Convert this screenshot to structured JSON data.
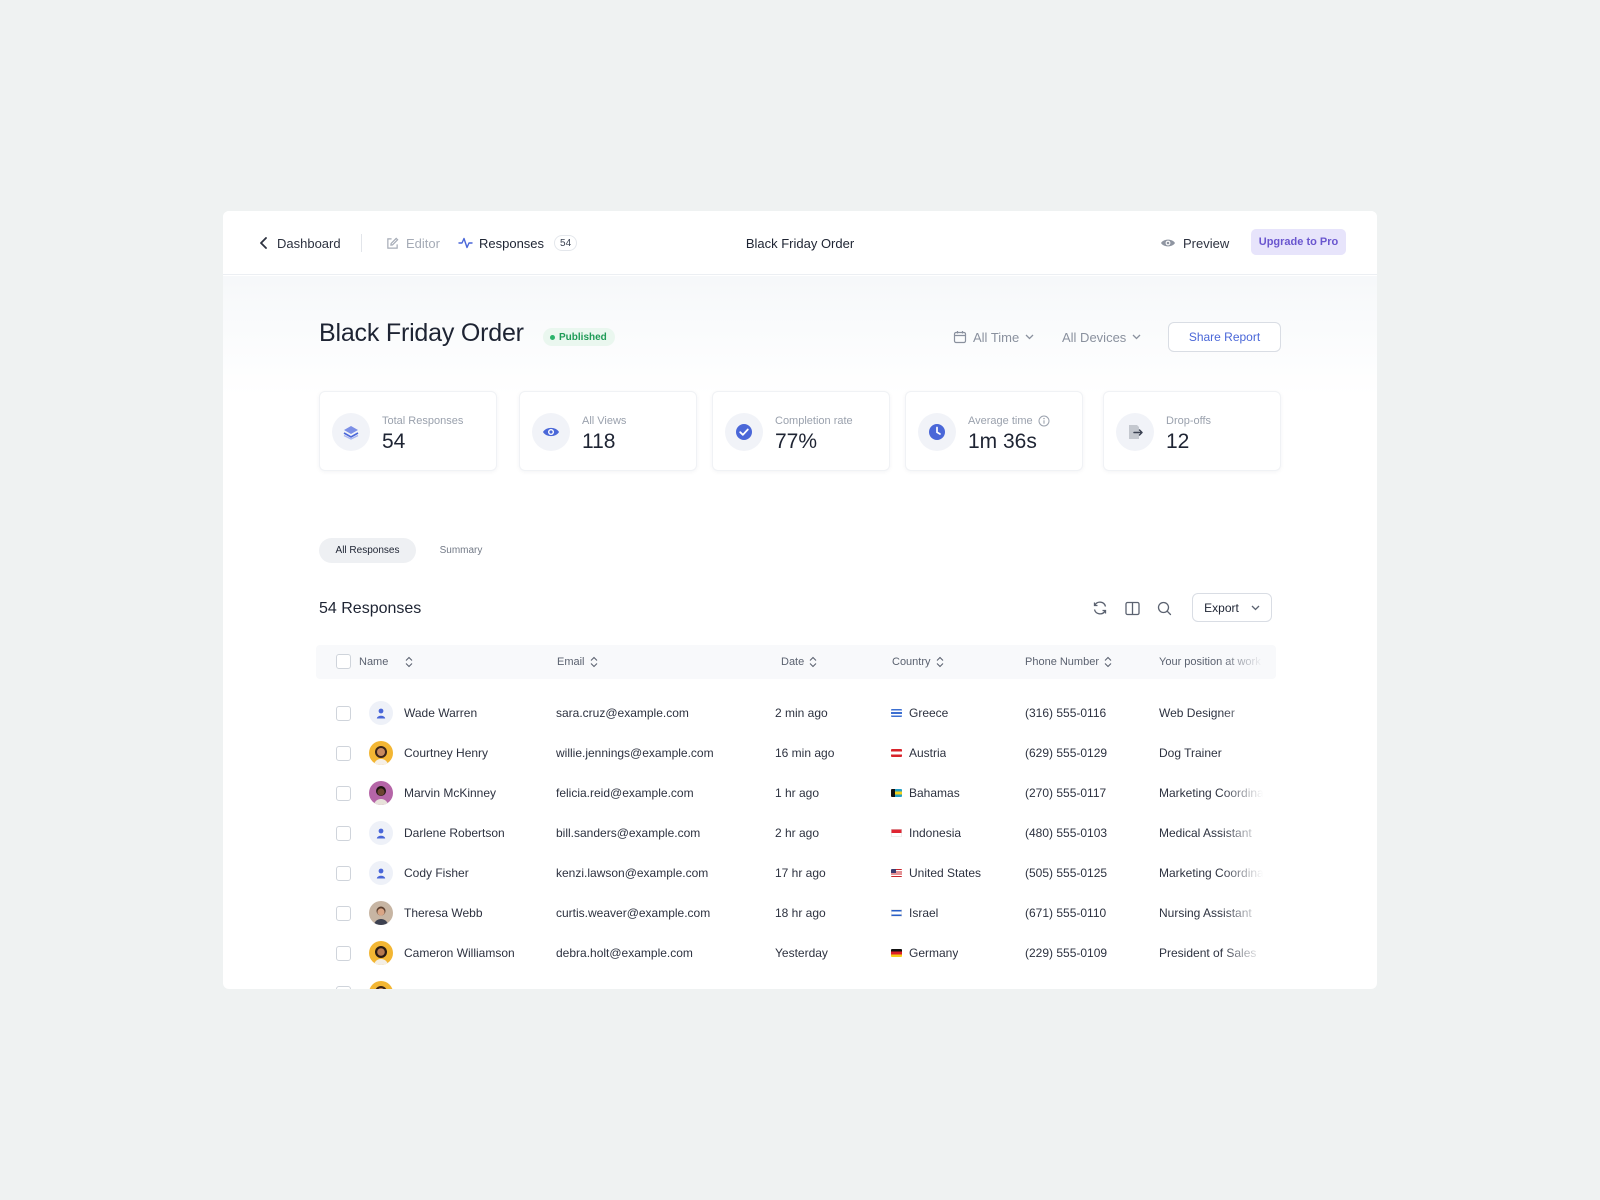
{
  "nav": {
    "back_label": "Dashboard",
    "editor_label": "Editor",
    "responses_label": "Responses",
    "responses_count": "54",
    "form_title": "Black Friday Order",
    "preview_label": "Preview",
    "upgrade_label": "Upgrade to Pro"
  },
  "header": {
    "title": "Black Friday Order",
    "status": "Published",
    "time_filter": "All Time",
    "device_filter": "All Devices",
    "share_label": "Share Report"
  },
  "stats": [
    {
      "label": "Total Responses",
      "value": "54",
      "icon": "layers-icon"
    },
    {
      "label": "All Views",
      "value": "118",
      "icon": "eye-icon"
    },
    {
      "label": "Completion rate",
      "value": "77%",
      "icon": "check-circle-icon"
    },
    {
      "label": "Average time",
      "value": "1m 36s",
      "icon": "clock-icon"
    },
    {
      "label": "Drop-offs",
      "value": "12",
      "icon": "exit-icon"
    }
  ],
  "tabs": {
    "all": "All Responses",
    "summary": "Summary"
  },
  "table": {
    "count_label": "54 Responses",
    "export_label": "Export",
    "columns": [
      "Name",
      "Email",
      "Date",
      "Country",
      "Phone Number",
      "Your position at work"
    ],
    "rows": [
      {
        "name": "Wade Warren",
        "email": "sara.cruz@example.com",
        "date": "2 min ago",
        "country": "Greece",
        "phone": "(316) 555-0116",
        "position": "Web Designer"
      },
      {
        "name": "Courtney Henry",
        "email": "willie.jennings@example.com",
        "date": "16 min ago",
        "country": "Austria",
        "phone": "(629) 555-0129",
        "position": "Dog Trainer"
      },
      {
        "name": "Marvin McKinney",
        "email": "felicia.reid@example.com",
        "date": "1 hr ago",
        "country": "Bahamas",
        "phone": "(270) 555-0117",
        "position": "Marketing Coordinator"
      },
      {
        "name": "Darlene Robertson",
        "email": "bill.sanders@example.com",
        "date": "2 hr ago",
        "country": "Indonesia",
        "phone": "(480) 555-0103",
        "position": "Medical Assistant"
      },
      {
        "name": "Cody Fisher",
        "email": "kenzi.lawson@example.com",
        "date": "17 hr ago",
        "country": "United States",
        "phone": "(505) 555-0125",
        "position": "Marketing Coordinator"
      },
      {
        "name": "Theresa Webb",
        "email": "curtis.weaver@example.com",
        "date": "18 hr ago",
        "country": "Israel",
        "phone": "(671) 555-0110",
        "position": "Nursing Assistant"
      },
      {
        "name": "Cameron Williamson",
        "email": "debra.holt@example.com",
        "date": "Yesterday",
        "country": "Germany",
        "phone": "(229) 555-0109",
        "position": "President of Sales"
      }
    ]
  },
  "colors": {
    "accent": "#4a67d8",
    "upgrade_bg": "#e7e4fb",
    "upgrade_text": "#6a56cf",
    "published": "#1f9b57"
  }
}
